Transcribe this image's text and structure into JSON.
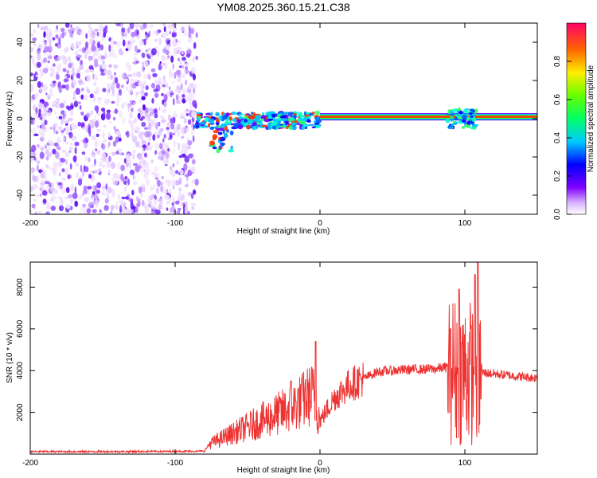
{
  "title": "YM08.2025.360.15.21.C38",
  "colors": {
    "signal_line": "#ee3333",
    "axis": "#000000",
    "background": "#ffffff"
  },
  "chart_data": [
    {
      "type": "heatmap",
      "xlabel": "Height of straight line (km)",
      "ylabel": "Frequency (Hz)",
      "xlim": [
        -200,
        150
      ],
      "ylim": [
        -50,
        50
      ],
      "xticks": [
        -200,
        -100,
        0,
        100
      ],
      "yticks": [
        -40,
        -20,
        0,
        20,
        40
      ],
      "colorbar": {
        "label": "Normalized spectral amplitude",
        "range": [
          0,
          1
        ],
        "ticks": [
          "0.0",
          "0.2",
          "0.4",
          "0.6",
          "0.8"
        ]
      },
      "features": {
        "noise_region_x": [
          -200,
          -85
        ],
        "transition_x": [
          -85,
          0
        ],
        "carrier_frequency_hz": 1,
        "carrier_start_x": 0,
        "burst_x": [
          88,
          108
        ]
      }
    },
    {
      "type": "line",
      "xlabel": "Height of straight line (km)",
      "ylabel": "SNR (10 * v/v)",
      "xlim": [
        -200,
        150
      ],
      "ylim": [
        0,
        9200
      ],
      "xticks": [
        -200,
        -100,
        0,
        100
      ],
      "yticks": [
        2000,
        4000,
        6000,
        8000
      ],
      "series": [
        {
          "name": "SNR",
          "x": [
            -200,
            -150,
            -100,
            -80,
            -76,
            -60,
            -40,
            -20,
            -5,
            0,
            10,
            20,
            40,
            60,
            80,
            90,
            95,
            100,
            105,
            110,
            112,
            120,
            140,
            150
          ],
          "values": [
            120,
            120,
            130,
            140,
            500,
            1000,
            1600,
            2200,
            2900,
            1600,
            2700,
            3300,
            3950,
            4050,
            4080,
            4200,
            3900,
            4000,
            3900,
            3950,
            3900,
            3850,
            3700,
            3650
          ],
          "spikes": [
            [
              -20,
              3500
            ],
            [
              -3,
              5400
            ],
            [
              90,
              6000
            ],
            [
              96,
              7900
            ],
            [
              107,
              8600
            ],
            [
              109,
              9200
            ]
          ]
        }
      ]
    }
  ]
}
